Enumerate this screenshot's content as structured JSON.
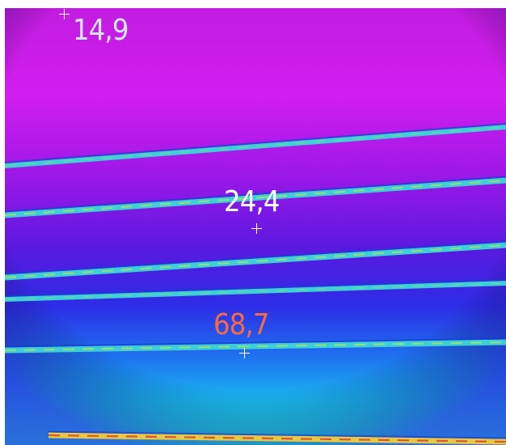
{
  "thermal_image": {
    "spot_readings": [
      {
        "label": "14,9",
        "color": "#cfeaf7"
      },
      {
        "label": "24,4",
        "color": "#ffffff"
      },
      {
        "label": "68,7",
        "color": "#ff6a3d"
      }
    ],
    "palette": {
      "cold": "#d400f0",
      "cool": "#6a1be0",
      "mid": "#1f48f2",
      "warm": "#1fb8f0",
      "warmer": "#22f0e4",
      "hot_line": "#43c6d8",
      "hottest": "#f2d23a"
    }
  }
}
